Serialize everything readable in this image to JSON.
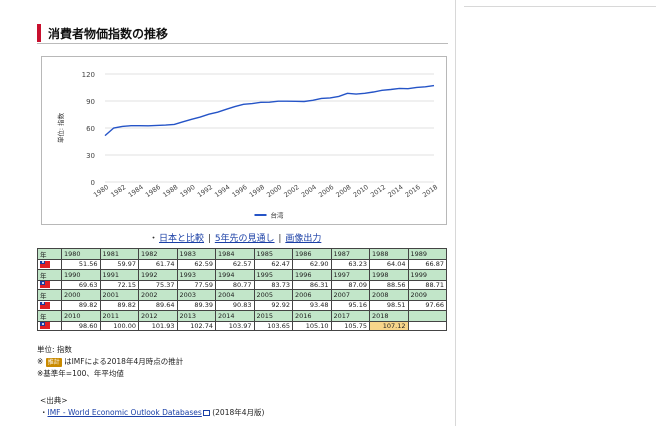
{
  "section": {
    "title": "消費者物価指数の推移"
  },
  "chart_data": {
    "type": "line",
    "ylabel": "単位: 指数",
    "ylim": [
      0,
      120
    ],
    "yticks": [
      0,
      30,
      60,
      90,
      120
    ],
    "xticks": [
      "1980",
      "1982",
      "1984",
      "1986",
      "1988",
      "1990",
      "1992",
      "1994",
      "1996",
      "1998",
      "2000",
      "2002",
      "2004",
      "2006",
      "2008",
      "2010",
      "2012",
      "2014",
      "2016",
      "2018"
    ],
    "legend_position": "bottom-center",
    "grid": true,
    "series": [
      {
        "name": "台湾",
        "color": "#2554c7",
        "x": [
          1980,
          1981,
          1982,
          1983,
          1984,
          1985,
          1986,
          1987,
          1988,
          1989,
          1990,
          1991,
          1992,
          1993,
          1994,
          1995,
          1996,
          1997,
          1998,
          1999,
          2000,
          2001,
          2002,
          2003,
          2004,
          2005,
          2006,
          2007,
          2008,
          2009,
          2010,
          2011,
          2012,
          2013,
          2014,
          2015,
          2016,
          2017,
          2018
        ],
        "values": [
          51.56,
          59.97,
          61.74,
          62.59,
          62.57,
          62.47,
          62.9,
          63.23,
          64.04,
          66.87,
          69.63,
          72.15,
          75.37,
          77.59,
          80.77,
          83.73,
          86.31,
          87.09,
          88.56,
          88.71,
          89.82,
          89.82,
          89.64,
          89.39,
          90.83,
          92.92,
          93.48,
          95.16,
          98.51,
          97.66,
          98.6,
          100.0,
          101.93,
          102.74,
          103.97,
          103.65,
          105.1,
          105.75,
          107.12
        ]
      }
    ]
  },
  "links": {
    "compare_japan": "日本と比較",
    "forecast": "5年先の見通し",
    "image_export": "画像出力"
  },
  "table": {
    "flag_label": "台湾",
    "rows": [
      {
        "years": [
          "1980",
          "1981",
          "1982",
          "1983",
          "1984",
          "1985",
          "1986",
          "1987",
          "1988",
          "1989"
        ],
        "values": [
          "51.56",
          "59.97",
          "61.74",
          "62.59",
          "62.57",
          "62.47",
          "62.90",
          "63.23",
          "64.04",
          "66.87"
        ]
      },
      {
        "years": [
          "1990",
          "1991",
          "1992",
          "1993",
          "1994",
          "1995",
          "1996",
          "1997",
          "1998",
          "1999"
        ],
        "values": [
          "69.63",
          "72.15",
          "75.37",
          "77.59",
          "80.77",
          "83.73",
          "86.31",
          "87.09",
          "88.56",
          "88.71"
        ]
      },
      {
        "years": [
          "2000",
          "2001",
          "2002",
          "2003",
          "2004",
          "2005",
          "2006",
          "2007",
          "2008",
          "2009"
        ],
        "values": [
          "89.82",
          "89.82",
          "89.64",
          "89.39",
          "90.83",
          "92.92",
          "93.48",
          "95.16",
          "98.51",
          "97.66"
        ]
      },
      {
        "years": [
          "2010",
          "2011",
          "2012",
          "2013",
          "2014",
          "2015",
          "2016",
          "2017",
          "2018",
          ""
        ],
        "values": [
          "98.60",
          "100.00",
          "101.93",
          "102.74",
          "103.97",
          "103.65",
          "105.10",
          "105.75",
          "107.12",
          ""
        ]
      }
    ],
    "estimate_color": "#f7d58a"
  },
  "notes": {
    "unit": "単位: 指数",
    "estimate_prefix": "※",
    "estimate_badge": "推計",
    "estimate_text": "はIMFによる2018年4月時点の推計",
    "base_year": "※基準年=100、年平均値"
  },
  "source": {
    "label": "<出典>",
    "bullet": "・",
    "link": "IMF - World Economic Outlook Databases",
    "date": "(2018年4月版)"
  }
}
